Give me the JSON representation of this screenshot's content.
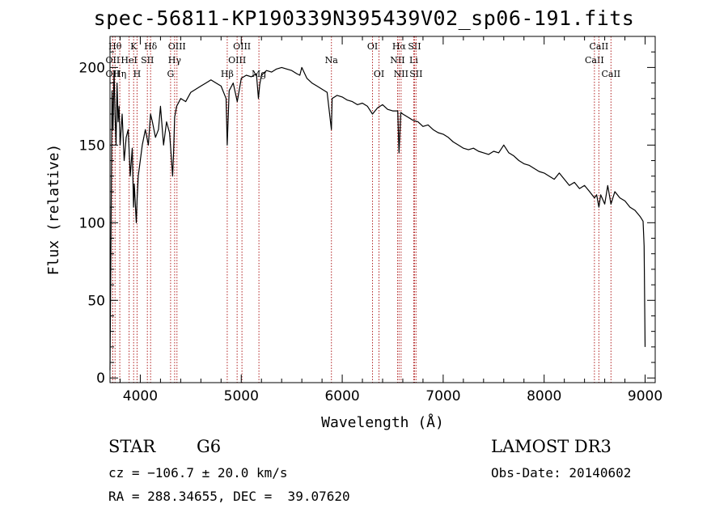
{
  "title": "spec-56811-KP190339N395439V02_sp06-191.fits",
  "object_class": "STAR",
  "subclass": "G6",
  "survey": "LAMOST DR3",
  "cz_text": "cz = −106.7 ± 20.0 km/s",
  "obs_date_text": "Obs-Date: 20140602",
  "radec_text": "RA = 288.34655, DEC =  39.07620",
  "colors": {
    "spectrum": "#000000",
    "line_markers": "#b22222",
    "axes": "#000000"
  },
  "chart_data": {
    "type": "line",
    "xlabel": "Wavelength (Å)",
    "ylabel": "Flux (relative)",
    "xlim": [
      3700,
      9100
    ],
    "ylim": [
      -3,
      220
    ],
    "xticks": [
      4000,
      5000,
      6000,
      7000,
      8000,
      9000
    ],
    "yticks": [
      0,
      50,
      100,
      150,
      200
    ],
    "grid": false,
    "series": [
      {
        "x": [
          3700,
          3710,
          3720,
          3730,
          3740,
          3750,
          3760,
          3770,
          3780,
          3790,
          3800,
          3820,
          3840,
          3860,
          3880,
          3900,
          3920,
          3933,
          3940,
          3960,
          3968,
          3980,
          4000,
          4020,
          4050,
          4080,
          4101,
          4120,
          4150,
          4180,
          4200,
          4230,
          4260,
          4290,
          4310,
          4320,
          4330,
          4340,
          4360,
          4400,
          4450,
          4500,
          4550,
          4600,
          4650,
          4700,
          4750,
          4800,
          4850,
          4861,
          4880,
          4920,
          4960,
          5000,
          5050,
          5100,
          5150,
          5170,
          5183,
          5200,
          5250,
          5300,
          5350,
          5400,
          5450,
          5500,
          5550,
          5580,
          5600,
          5650,
          5700,
          5750,
          5800,
          5850,
          5893,
          5900,
          5950,
          6000,
          6050,
          6100,
          6150,
          6200,
          6250,
          6300,
          6350,
          6400,
          6450,
          6500,
          6550,
          6563,
          6580,
          6600,
          6650,
          6700,
          6750,
          6800,
          6850,
          6900,
          6950,
          7000,
          7050,
          7100,
          7150,
          7200,
          7250,
          7300,
          7350,
          7400,
          7450,
          7500,
          7550,
          7600,
          7650,
          7700,
          7750,
          7800,
          7850,
          7900,
          7950,
          8000,
          8050,
          8100,
          8150,
          8200,
          8250,
          8300,
          8350,
          8400,
          8450,
          8498,
          8520,
          8542,
          8560,
          8600,
          8630,
          8662,
          8700,
          8750,
          8800,
          8850,
          8900,
          8950,
          8980,
          8990,
          9000
        ],
        "y": [
          5,
          90,
          185,
          160,
          198,
          170,
          150,
          190,
          165,
          175,
          150,
          170,
          140,
          155,
          160,
          130,
          148,
          110,
          125,
          100,
          115,
          130,
          140,
          150,
          160,
          150,
          170,
          165,
          155,
          160,
          175,
          150,
          165,
          158,
          140,
          130,
          145,
          168,
          175,
          180,
          178,
          184,
          186,
          188,
          190,
          192,
          190,
          188,
          180,
          150,
          185,
          190,
          178,
          193,
          195,
          194,
          196,
          180,
          189,
          195,
          198,
          197,
          199,
          200,
          199,
          198,
          196,
          195,
          200,
          193,
          190,
          188,
          186,
          184,
          160,
          180,
          182,
          181,
          179,
          178,
          176,
          177,
          175,
          170,
          174,
          176,
          173,
          172,
          172,
          145,
          171,
          170,
          168,
          166,
          165,
          162,
          163,
          160,
          158,
          157,
          155,
          152,
          150,
          148,
          147,
          148,
          146,
          145,
          144,
          146,
          145,
          150,
          145,
          143,
          140,
          138,
          137,
          135,
          133,
          132,
          130,
          128,
          132,
          128,
          124,
          126,
          122,
          124,
          120,
          116,
          118,
          110,
          118,
          112,
          124,
          112,
          120,
          116,
          114,
          110,
          108,
          104,
          101,
          85,
          20
        ]
      }
    ],
    "line_markers": [
      {
        "wavelength": 3750,
        "label": "Hθ",
        "row": 0
      },
      {
        "wavelength": 3727,
        "label": "OII",
        "row": 1
      },
      {
        "wavelength": 3727,
        "label": "OII",
        "row": 2
      },
      {
        "wavelength": 3797,
        "label": "Hη",
        "row": 2
      },
      {
        "wavelength": 3889,
        "label": "HeI",
        "row": 1
      },
      {
        "wavelength": 3934,
        "label": "K",
        "row": 0
      },
      {
        "wavelength": 3968,
        "label": "H",
        "row": 2
      },
      {
        "wavelength": 4070,
        "label": "SII",
        "row": 1
      },
      {
        "wavelength": 4102,
        "label": "Hδ",
        "row": 0
      },
      {
        "wavelength": 4300,
        "label": "G",
        "row": 2
      },
      {
        "wavelength": 4340,
        "label": "Hγ",
        "row": 1
      },
      {
        "wavelength": 4363,
        "label": "OIII",
        "row": 0
      },
      {
        "wavelength": 4861,
        "label": "Hβ",
        "row": 2
      },
      {
        "wavelength": 4959,
        "label": "OIII",
        "row": 1
      },
      {
        "wavelength": 5007,
        "label": "OIII",
        "row": 0
      },
      {
        "wavelength": 5175,
        "label": "Mg",
        "row": 2
      },
      {
        "wavelength": 5893,
        "label": "Na",
        "row": 1
      },
      {
        "wavelength": 6300,
        "label": "OI",
        "row": 0
      },
      {
        "wavelength": 6364,
        "label": "OI",
        "row": 2
      },
      {
        "wavelength": 6548,
        "label": "NII",
        "row": 1
      },
      {
        "wavelength": 6563,
        "label": "Hα",
        "row": 0
      },
      {
        "wavelength": 6583,
        "label": "NII",
        "row": 2
      },
      {
        "wavelength": 6708,
        "label": "Li",
        "row": 1
      },
      {
        "wavelength": 6716,
        "label": "SII",
        "row": 0
      },
      {
        "wavelength": 6731,
        "label": "SII",
        "row": 2
      },
      {
        "wavelength": 8498,
        "label": "CaII",
        "row": 1
      },
      {
        "wavelength": 8542,
        "label": "CaII",
        "row": 0
      },
      {
        "wavelength": 8662,
        "label": "CaII",
        "row": 2
      }
    ]
  }
}
